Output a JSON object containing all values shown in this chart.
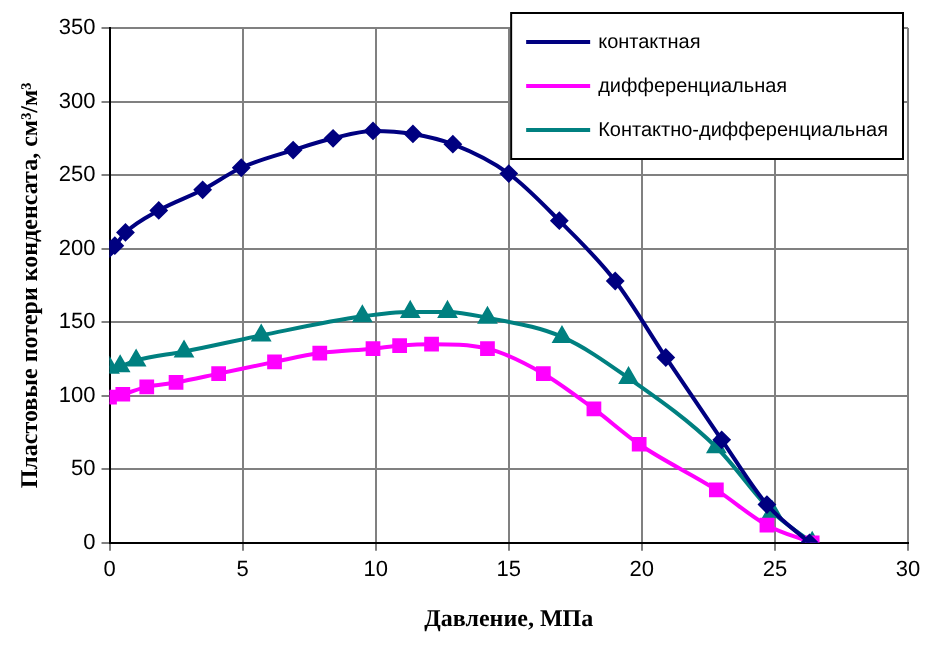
{
  "chart_data": {
    "type": "line",
    "xlabel": "Давление, МПа",
    "ylabel": "Пластовые потери конденсата, см³/м³",
    "xlim": [
      0,
      30
    ],
    "xticks": [
      0,
      5,
      10,
      15,
      20,
      25,
      30
    ],
    "ylim": [
      0,
      350
    ],
    "yticks": [
      0,
      50,
      100,
      150,
      200,
      250,
      300,
      350
    ],
    "grid": true,
    "legend": "top right",
    "series": [
      {
        "name": "контактная",
        "color": "#000080",
        "marker": "diamond",
        "x": [
          0,
          0.2,
          0.6,
          1.85,
          3.5,
          4.95,
          6.9,
          8.4,
          9.9,
          11.4,
          12.9,
          15,
          16.9,
          19,
          20.9,
          23,
          24.7,
          26.3
        ],
        "values": [
          200,
          202,
          211,
          226,
          240,
          255,
          267,
          275,
          280,
          278,
          271,
          251,
          219,
          178,
          126,
          70,
          26,
          0
        ]
      },
      {
        "name": "дифференциальная",
        "color": "#ff00ff",
        "marker": "square",
        "x": [
          0,
          0.5,
          1.4,
          2.5,
          4.1,
          6.2,
          7.9,
          9.9,
          10.9,
          12.1,
          14.2,
          16.3,
          18.2,
          19.9,
          22.8,
          24.7,
          26.4
        ],
        "values": [
          99,
          101,
          106,
          109,
          115,
          123,
          129,
          132,
          134,
          135,
          132,
          115,
          91,
          67,
          36,
          12,
          0
        ]
      },
      {
        "name": "Контактно-дифференциальная",
        "color": "#008080",
        "marker": "triangle",
        "x": [
          0,
          0.4,
          1,
          2.8,
          5.7,
          9.5,
          11.3,
          12.7,
          14.2,
          17,
          19.5,
          22.8,
          24.9,
          26.4
        ],
        "values": [
          119,
          120,
          124,
          130,
          141,
          154,
          157,
          157,
          153,
          140,
          112,
          65,
          21,
          0
        ]
      }
    ]
  }
}
